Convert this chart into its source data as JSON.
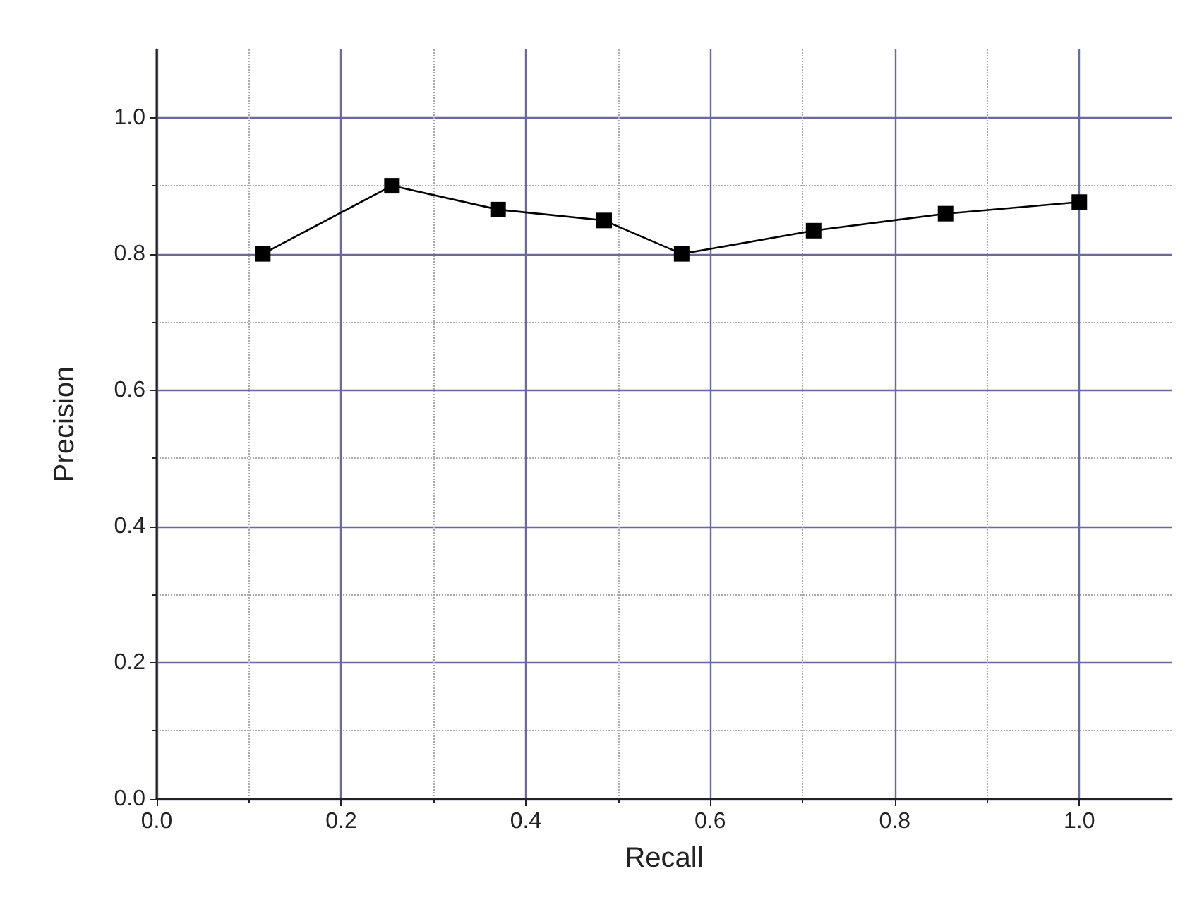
{
  "chart_data": {
    "type": "line",
    "xlabel": "Recall",
    "ylabel": "Precision",
    "x": [
      0.115,
      0.255,
      0.37,
      0.485,
      0.569,
      0.712,
      0.855,
      1.0
    ],
    "series": [
      {
        "color": "#000000",
        "values": [
          0.8,
          0.9,
          0.865,
          0.849,
          0.8,
          0.834,
          0.859,
          0.876
        ]
      }
    ],
    "xlim": [
      0,
      1.1
    ],
    "xticks": [
      {
        "value": 0,
        "label": "0.0"
      },
      0.2,
      0.4,
      0.6,
      0.8,
      {
        "value": 1,
        "label": "1.0"
      }
    ],
    "ylim": [
      0,
      1.1
    ],
    "yticks": [
      {
        "value": 0,
        "label": "0.0"
      },
      0.2,
      0.4,
      0.6,
      0.8,
      {
        "value": 1,
        "label": "1.0"
      }
    ],
    "grid": true,
    "marker": "square",
    "line_style": "solid"
  }
}
